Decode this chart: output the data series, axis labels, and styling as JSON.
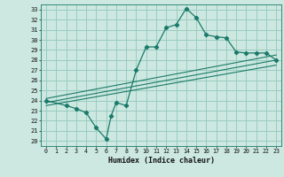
{
  "title": "",
  "xlabel": "Humidex (Indice chaleur)",
  "xlim": [
    -0.5,
    23.5
  ],
  "ylim": [
    19.5,
    33.5
  ],
  "xticks": [
    0,
    1,
    2,
    3,
    4,
    5,
    6,
    7,
    8,
    9,
    10,
    11,
    12,
    13,
    14,
    15,
    16,
    17,
    18,
    19,
    20,
    21,
    22,
    23
  ],
  "yticks": [
    20,
    21,
    22,
    23,
    24,
    25,
    26,
    27,
    28,
    29,
    30,
    31,
    32,
    33
  ],
  "bg_color": "#cce8e0",
  "grid_color": "#99ccc0",
  "line_color": "#1a7a6a",
  "curve_data": [
    [
      0,
      24.0
    ],
    [
      2,
      23.5
    ],
    [
      3,
      23.2
    ],
    [
      4,
      22.8
    ],
    [
      5,
      21.3
    ],
    [
      6,
      20.2
    ],
    [
      6.5,
      22.5
    ],
    [
      7,
      23.8
    ],
    [
      8,
      23.5
    ],
    [
      9,
      27.0
    ],
    [
      10,
      29.3
    ],
    [
      11,
      29.3
    ],
    [
      12,
      31.2
    ],
    [
      13,
      31.5
    ],
    [
      14,
      33.1
    ],
    [
      15,
      32.2
    ],
    [
      16,
      30.5
    ],
    [
      17,
      30.3
    ],
    [
      18,
      30.2
    ],
    [
      19,
      28.8
    ],
    [
      20,
      28.7
    ],
    [
      21,
      28.7
    ],
    [
      22,
      28.7
    ],
    [
      23,
      28.0
    ]
  ],
  "line1_data": [
    [
      0,
      23.5
    ],
    [
      23,
      27.5
    ]
  ],
  "line2_data": [
    [
      0,
      23.8
    ],
    [
      23,
      28.0
    ]
  ],
  "line3_data": [
    [
      0,
      24.2
    ],
    [
      23,
      28.5
    ]
  ]
}
